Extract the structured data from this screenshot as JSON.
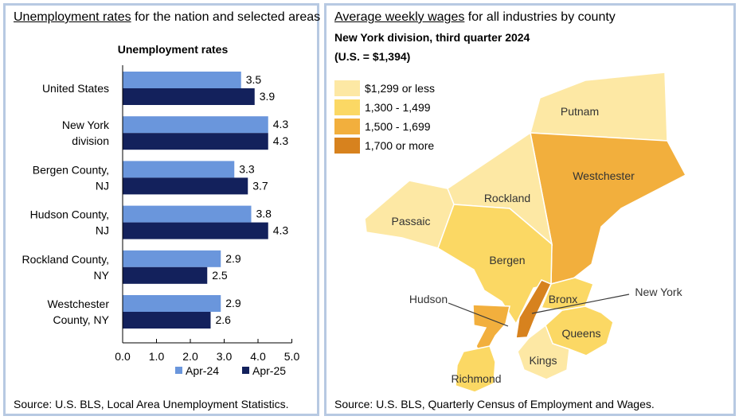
{
  "left_panel": {
    "title_underlined": "Unemployment rates",
    "title_rest": " for the nation and selected areas",
    "source": "Source: U.S. BLS, Local Area Unemployment Statistics."
  },
  "right_panel": {
    "title_underlined": "Average weekly wages",
    "title_rest": " for all industries by county",
    "subtitle1": "New York division, third quarter 2024",
    "subtitle2": "(U.S. = $1,394)",
    "source": "Source: U.S. BLS, Quarterly Census of Employment and Wages."
  },
  "chart_data": [
    {
      "type": "bar",
      "orientation": "horizontal",
      "title": "Unemployment rates",
      "categories": [
        [
          "United States"
        ],
        [
          "New York",
          "division"
        ],
        [
          "Bergen County,",
          "NJ"
        ],
        [
          "Hudson County,",
          "NJ"
        ],
        [
          "Rockland County,",
          "NY"
        ],
        [
          "Westchester",
          "County, NY"
        ]
      ],
      "series": [
        {
          "name": "Apr-24",
          "color": "#6a96dc",
          "values": [
            3.5,
            4.3,
            3.3,
            3.8,
            2.9,
            2.9
          ]
        },
        {
          "name": "Apr-25",
          "color": "#13215c",
          "values": [
            3.9,
            4.3,
            3.7,
            4.3,
            2.5,
            2.6
          ]
        }
      ],
      "value_labels": [
        [
          "3.5",
          "4.3",
          "3.3",
          "3.8",
          "2.9",
          "2.9"
        ],
        [
          "3.9",
          "4.3",
          "3.7",
          "4.3",
          "2.5",
          "2.6"
        ]
      ],
      "xlim": [
        0,
        5
      ],
      "xticks": [
        "0.0",
        "1.0",
        "2.0",
        "3.0",
        "4.0",
        "5.0"
      ],
      "legend_position": "bottom"
    },
    {
      "type": "choropleth-map",
      "title": "Average weekly wages for all industries by county",
      "legend": [
        {
          "label": "$1,299 or less",
          "color": "#fde8a4"
        },
        {
          "label": "1,300 - 1,499",
          "color": "#fbd864"
        },
        {
          "label": "1,500 - 1,699",
          "color": "#f2af3d"
        },
        {
          "label": "1,700 or more",
          "color": "#d7821e"
        }
      ],
      "regions": [
        {
          "name": "Putnam",
          "class": 0
        },
        {
          "name": "Westchester",
          "class": 2
        },
        {
          "name": "Rockland",
          "class": 0
        },
        {
          "name": "Passaic",
          "class": 0
        },
        {
          "name": "Bergen",
          "class": 1
        },
        {
          "name": "Hudson",
          "class": 2
        },
        {
          "name": "Bronx",
          "class": 1
        },
        {
          "name": "New York",
          "class": 3
        },
        {
          "name": "Queens",
          "class": 1
        },
        {
          "name": "Kings",
          "class": 0
        },
        {
          "name": "Richmond",
          "class": 1
        }
      ]
    }
  ]
}
